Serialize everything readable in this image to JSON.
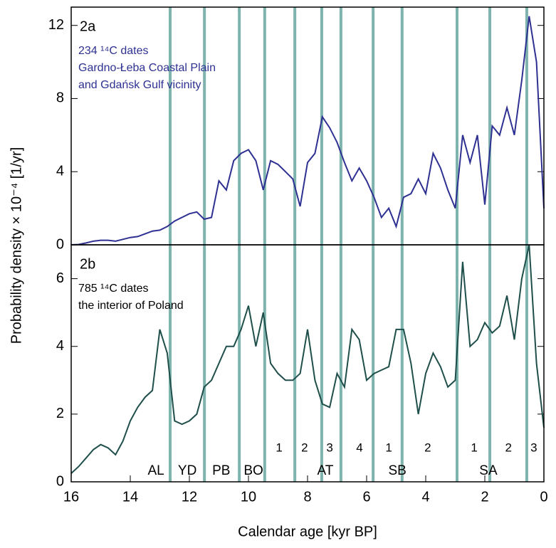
{
  "chart_data": [
    {
      "type": "line",
      "panel_label": "2a",
      "annotation": [
        "234 ¹⁴C dates",
        "Gardno-Łeba Coastal Plain",
        "and Gdańsk Gulf vicinity"
      ],
      "annotation_color": "#2e3192",
      "ylabel": "Probability density  × 10⁻⁴ [1/yr]",
      "xlim": [
        16,
        0
      ],
      "ylim": [
        0,
        13
      ],
      "yticks": [
        0,
        4,
        8,
        12
      ],
      "x": [
        16,
        15.75,
        15.5,
        15.25,
        15,
        14.75,
        14.5,
        14.25,
        14,
        13.75,
        13.5,
        13.25,
        13,
        12.75,
        12.5,
        12.25,
        12,
        11.75,
        11.5,
        11.25,
        11,
        10.75,
        10.5,
        10.25,
        10,
        9.75,
        9.5,
        9.25,
        9,
        8.75,
        8.5,
        8.25,
        8,
        7.75,
        7.5,
        7.25,
        7,
        6.75,
        6.5,
        6.25,
        6,
        5.75,
        5.5,
        5.25,
        5,
        4.75,
        4.5,
        4.25,
        4,
        3.75,
        3.5,
        3.25,
        3,
        2.75,
        2.5,
        2.25,
        2,
        1.75,
        1.5,
        1.25,
        1,
        0.75,
        0.5,
        0.25,
        0
      ],
      "series": [
        {
          "color": "#2e3192",
          "values": [
            0,
            0.02,
            0.1,
            0.2,
            0.25,
            0.25,
            0.2,
            0.3,
            0.4,
            0.45,
            0.6,
            0.75,
            0.8,
            1.0,
            1.3,
            1.5,
            1.7,
            1.8,
            1.4,
            1.5,
            3.5,
            3.0,
            4.6,
            5.0,
            5.2,
            4.6,
            3.0,
            4.6,
            4.4,
            4.0,
            3.6,
            2.1,
            4.5,
            5.0,
            7.0,
            6.4,
            5.6,
            4.5,
            3.5,
            4.2,
            3.5,
            2.6,
            1.5,
            2.0,
            1.0,
            2.6,
            2.8,
            3.6,
            2.8,
            5.0,
            4.2,
            3.0,
            2.0,
            6.0,
            4.5,
            6.0,
            2.2,
            6.5,
            6.0,
            7.5,
            6.0,
            9.0,
            12.5,
            10.0,
            2.0
          ]
        }
      ]
    },
    {
      "type": "line",
      "panel_label": "2b",
      "annotation": [
        "785 ¹⁴C  dates",
        "the interior of Poland"
      ],
      "annotation_color": "#000000",
      "xlabel": "Calendar  age  [kyr BP]",
      "xlim": [
        16,
        0
      ],
      "ylim": [
        0,
        7
      ],
      "xticks": [
        16,
        14,
        12,
        10,
        8,
        6,
        4,
        2,
        0
      ],
      "yticks": [
        0,
        2,
        4,
        6
      ],
      "boundaries": [
        12.65,
        11.49,
        10.31,
        9.45,
        8.43,
        7.52,
        6.87,
        5.78,
        4.8,
        2.94,
        1.83,
        0.58
      ],
      "boundary_color": "#7fb3ad",
      "zones": [
        {
          "label": "AL",
          "x": 13.13
        },
        {
          "label": "YD",
          "x": 12.07
        },
        {
          "label": "PB",
          "x": 10.92
        },
        {
          "label": "BO",
          "x": 9.83
        },
        {
          "label": "AT",
          "x": 7.4
        },
        {
          "label": "SB",
          "x": 4.96
        },
        {
          "label": "SA",
          "x": 1.88
        }
      ],
      "subzones": [
        {
          "label": "1",
          "x": 8.96
        },
        {
          "label": "2",
          "x": 8.1
        },
        {
          "label": "3",
          "x": 7.25
        },
        {
          "label": "4",
          "x": 6.24
        },
        {
          "label": "1",
          "x": 5.25
        },
        {
          "label": "2",
          "x": 3.93
        },
        {
          "label": "1",
          "x": 2.36
        },
        {
          "label": "2",
          "x": 1.2
        },
        {
          "label": "3",
          "x": 0.34
        }
      ],
      "x": [
        16,
        15.75,
        15.5,
        15.25,
        15,
        14.75,
        14.5,
        14.25,
        14,
        13.75,
        13.5,
        13.25,
        13,
        12.75,
        12.5,
        12.25,
        12,
        11.75,
        11.5,
        11.25,
        11,
        10.75,
        10.5,
        10.25,
        10,
        9.75,
        9.5,
        9.25,
        9,
        8.75,
        8.5,
        8.25,
        8,
        7.75,
        7.5,
        7.25,
        7,
        6.75,
        6.5,
        6.25,
        6,
        5.75,
        5.5,
        5.25,
        5,
        4.75,
        4.5,
        4.25,
        4,
        3.75,
        3.5,
        3.25,
        3,
        2.75,
        2.5,
        2.25,
        2,
        1.75,
        1.5,
        1.25,
        1,
        0.75,
        0.5,
        0.25,
        0
      ],
      "series": [
        {
          "color": "#1f4f4a",
          "values": [
            0.25,
            0.45,
            0.7,
            0.95,
            1.1,
            1.0,
            0.8,
            1.2,
            1.8,
            2.2,
            2.5,
            2.7,
            4.5,
            3.8,
            1.8,
            1.7,
            1.8,
            2.0,
            2.8,
            3.0,
            3.5,
            4.0,
            4.0,
            4.5,
            5.2,
            4.0,
            5.0,
            3.5,
            3.2,
            3.0,
            3.0,
            3.2,
            4.5,
            3.0,
            2.3,
            2.2,
            3.2,
            2.8,
            4.5,
            4.2,
            3.0,
            3.2,
            3.3,
            3.4,
            4.5,
            4.5,
            3.5,
            2.0,
            3.2,
            3.8,
            3.4,
            2.8,
            3.0,
            6.5,
            4.0,
            4.2,
            4.7,
            4.4,
            4.6,
            5.5,
            4.2,
            6.0,
            7.0,
            3.5,
            1.6
          ]
        }
      ]
    }
  ]
}
